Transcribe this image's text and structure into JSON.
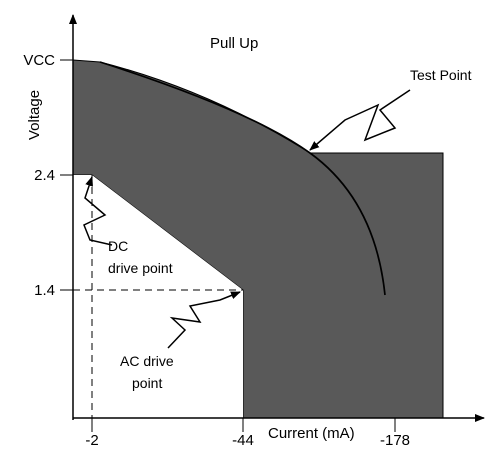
{
  "title": "Pull Up",
  "axes": {
    "x_label": "Current (mA)",
    "y_label": "Voltage",
    "x_ticks": [
      "-2",
      "-44",
      "-178"
    ],
    "y_ticks": [
      "VCC",
      "2.4",
      "1.4"
    ]
  },
  "annotations": {
    "test_point": "Test Point",
    "dc_drive_point": [
      "DC",
      "drive point"
    ],
    "ac_drive_point": [
      "AC drive",
      "point"
    ]
  },
  "colors": {
    "region_fill": "#595959",
    "line": "#000000"
  }
}
